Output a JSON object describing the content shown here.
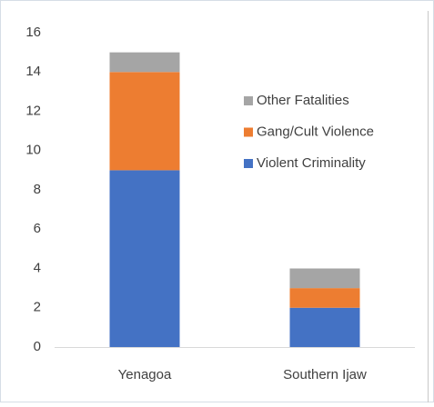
{
  "chart_data": {
    "type": "stacked_bar",
    "categories": [
      "Yenagoa",
      "Southern Ijaw"
    ],
    "series": [
      {
        "name": "Violent Criminality",
        "color": "#4472c4",
        "values": [
          9,
          2
        ]
      },
      {
        "name": "Gang/Cult Violence",
        "color": "#ed7d31",
        "values": [
          5,
          1
        ]
      },
      {
        "name": "Other Fatalities",
        "color": "#a5a5a5",
        "values": [
          1,
          1
        ]
      }
    ],
    "ylim": [
      0,
      16
    ],
    "yticks": [
      0,
      2,
      4,
      6,
      8,
      10,
      12,
      14,
      16
    ],
    "grid": false,
    "legend": "right"
  }
}
